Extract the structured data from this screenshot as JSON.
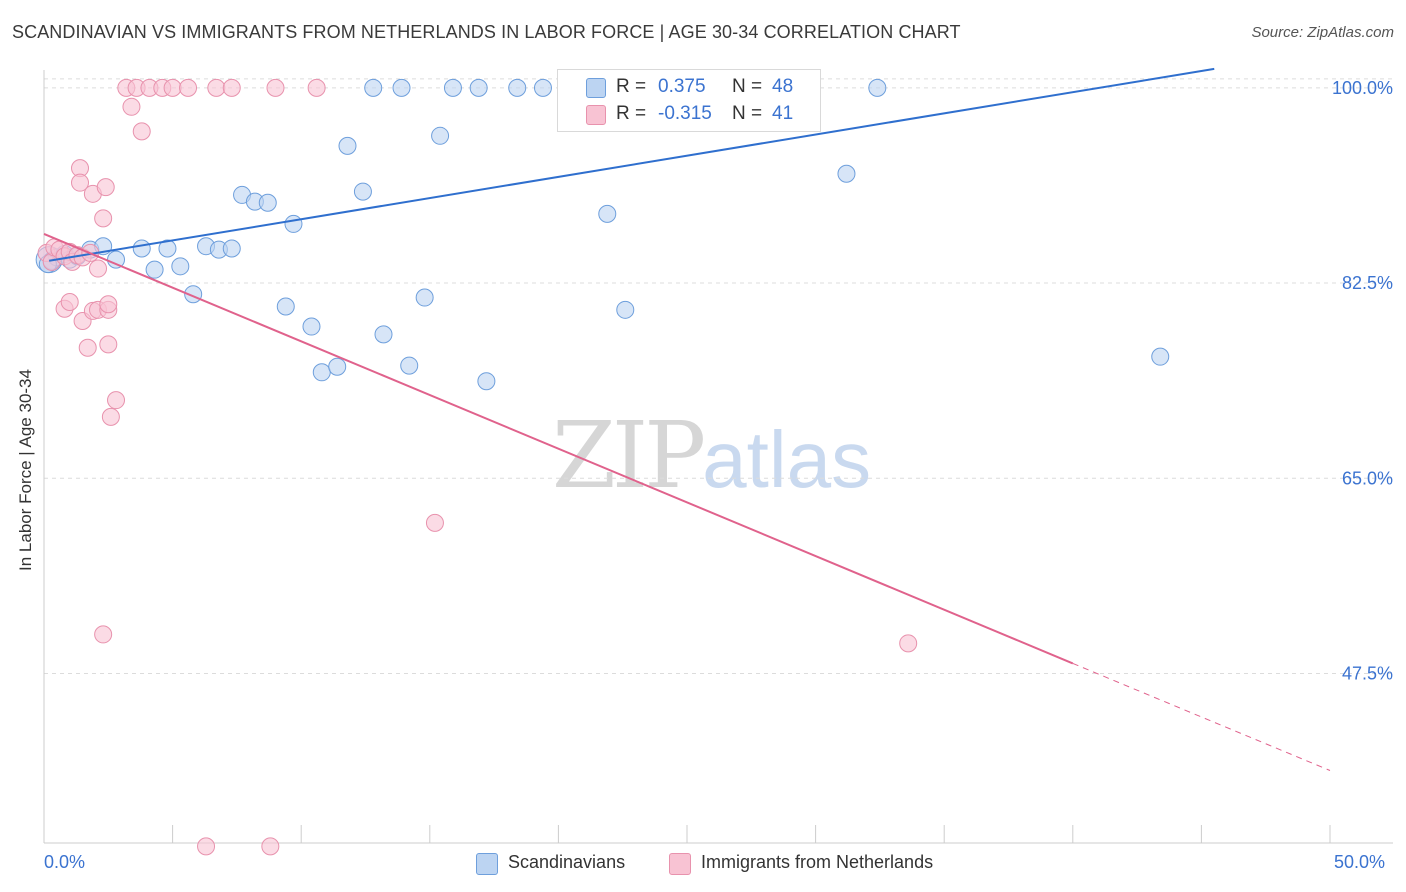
{
  "header": {
    "title": "SCANDINAVIAN VS IMMIGRANTS FROM NETHERLANDS IN LABOR FORCE | AGE 30-34 CORRELATION CHART",
    "source": "Source: ZipAtlas.com"
  },
  "watermark": {
    "zip": "ZIP",
    "atlas": "atlas"
  },
  "legend_top": {
    "rows": [
      {
        "r_label": "R =",
        "r_value": "0.375",
        "n_label": "N =",
        "n_value": "48"
      },
      {
        "r_label": "R =",
        "r_value": "-0.315",
        "n_label": "N =",
        "n_value": "41"
      }
    ]
  },
  "legend_bottom": {
    "items": [
      "Scandinavians",
      "Immigrants from Netherlands"
    ]
  },
  "colors": {
    "blue_fill": "#bcd4f2",
    "blue_stroke": "#6e9fdc",
    "blue_line": "#2f6fce",
    "pink_fill": "#f8c3d3",
    "pink_stroke": "#e892ad",
    "pink_line": "#e0628c",
    "tick_text": "#3b73d0",
    "grid": "#dcdcdc"
  },
  "chart_data": {
    "type": "scatter",
    "title": "SCANDINAVIAN VS IMMIGRANTS FROM NETHERLANDS IN LABOR FORCE | AGE 30-34 CORRELATION CHART",
    "xlabel": "",
    "ylabel": "In Labor Force | Age 30-34",
    "xlim": [
      0,
      50
    ],
    "ylim": [
      32.3,
      101.6
    ],
    "x_tick_labels": [
      "0.0%",
      "50.0%"
    ],
    "y_ticks": [
      100.0,
      82.5,
      65.0,
      47.5
    ],
    "y_tick_labels": [
      "100.0%",
      "82.5%",
      "65.0%",
      "47.5%"
    ],
    "grid": true,
    "legend_position": "top-center",
    "series": [
      {
        "name": "Scandinavians",
        "r": 0.375,
        "n": 48,
        "trend": {
          "x": [
            0.2,
            45.5
          ],
          "y": [
            84.5,
            101.7
          ]
        },
        "points": [
          [
            0.3,
            84.5
          ],
          [
            0.5,
            84.8
          ],
          [
            0.8,
            85.1
          ],
          [
            1.0,
            84.6
          ],
          [
            1.3,
            84.9
          ],
          [
            1.8,
            85.5
          ],
          [
            2.3,
            85.8
          ],
          [
            2.8,
            84.6
          ],
          [
            3.8,
            85.6
          ],
          [
            4.3,
            83.7
          ],
          [
            4.8,
            85.6
          ],
          [
            5.3,
            84.0
          ],
          [
            5.8,
            81.5
          ],
          [
            6.3,
            85.8
          ],
          [
            6.8,
            85.5
          ],
          [
            7.3,
            85.6
          ],
          [
            7.7,
            90.4
          ],
          [
            8.2,
            89.8
          ],
          [
            8.7,
            89.7
          ],
          [
            9.4,
            80.4
          ],
          [
            9.7,
            87.8
          ],
          [
            10.4,
            78.6
          ],
          [
            10.8,
            74.5
          ],
          [
            11.4,
            75.0
          ],
          [
            11.8,
            94.8
          ],
          [
            12.4,
            90.7
          ],
          [
            12.8,
            100.0
          ],
          [
            13.2,
            77.9
          ],
          [
            13.9,
            100.0
          ],
          [
            14.2,
            75.1
          ],
          [
            14.8,
            81.2
          ],
          [
            15.4,
            95.7
          ],
          [
            15.9,
            100.0
          ],
          [
            16.9,
            100.0
          ],
          [
            17.2,
            73.7
          ],
          [
            18.4,
            100.0
          ],
          [
            19.4,
            100.0
          ],
          [
            20.4,
            100.0
          ],
          [
            21.4,
            100.0
          ],
          [
            21.9,
            88.7
          ],
          [
            22.6,
            80.1
          ],
          [
            23.5,
            100.0
          ],
          [
            24.7,
            100.0
          ],
          [
            25.9,
            100.0
          ],
          [
            31.2,
            92.3
          ],
          [
            32.4,
            100.0
          ],
          [
            43.4,
            75.9
          ],
          [
            0.15,
            84.2
          ]
        ]
      },
      {
        "name": "Immigrants from Netherlands",
        "r": -0.315,
        "n": 41,
        "trend": {
          "x": [
            0.0,
            40.0
          ],
          "y": [
            86.9,
            48.4
          ]
        },
        "trend_dashed": {
          "x": [
            40.0,
            50.0
          ],
          "y": [
            48.4,
            38.8
          ]
        },
        "points": [
          [
            0.1,
            85.2
          ],
          [
            0.3,
            84.4
          ],
          [
            0.4,
            85.7
          ],
          [
            0.6,
            85.5
          ],
          [
            0.8,
            84.9
          ],
          [
            1.0,
            85.3
          ],
          [
            1.1,
            84.4
          ],
          [
            1.3,
            85.0
          ],
          [
            1.5,
            84.8
          ],
          [
            1.8,
            85.2
          ],
          [
            2.1,
            83.8
          ],
          [
            2.3,
            88.3
          ],
          [
            0.8,
            80.2
          ],
          [
            1.0,
            80.8
          ],
          [
            1.5,
            79.1
          ],
          [
            1.7,
            76.7
          ],
          [
            1.9,
            80.0
          ],
          [
            2.1,
            80.1
          ],
          [
            2.5,
            80.1
          ],
          [
            2.5,
            80.6
          ],
          [
            2.5,
            77.0
          ],
          [
            2.8,
            72.0
          ],
          [
            3.2,
            100.0
          ],
          [
            3.4,
            98.3
          ],
          [
            3.6,
            100.0
          ],
          [
            3.8,
            96.1
          ],
          [
            4.1,
            100.0
          ],
          [
            4.6,
            100.0
          ],
          [
            5.0,
            100.0
          ],
          [
            5.6,
            100.0
          ],
          [
            6.7,
            100.0
          ],
          [
            7.3,
            100.0
          ],
          [
            9.0,
            100.0
          ],
          [
            10.6,
            100.0
          ],
          [
            1.4,
            92.8
          ],
          [
            1.4,
            91.5
          ],
          [
            1.9,
            90.5
          ],
          [
            2.4,
            91.1
          ],
          [
            2.6,
            70.5
          ],
          [
            15.2,
            61.0
          ],
          [
            2.3,
            51.0
          ]
        ],
        "bottom_points": [
          [
            6.3,
            32.0
          ],
          [
            8.8,
            32.0
          ]
        ],
        "extra_points": [
          [
            33.6,
            50.2
          ]
        ]
      }
    ]
  }
}
